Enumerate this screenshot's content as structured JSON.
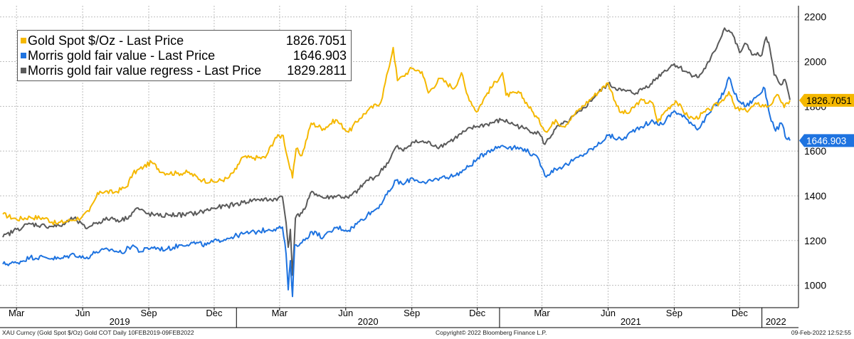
{
  "chart_data": {
    "type": "line",
    "ylim": [
      900,
      2250
    ],
    "y_ticks": [
      1000,
      1200,
      1400,
      1600,
      1800,
      2000,
      2200
    ],
    "x_range": [
      "2019-02-10",
      "2022-02-09"
    ],
    "month_ticks": [
      {
        "date": "2019-03-01",
        "label": "Mar"
      },
      {
        "date": "2019-06-01",
        "label": "Jun"
      },
      {
        "date": "2019-09-01",
        "label": "Sep"
      },
      {
        "date": "2019-12-01",
        "label": "Dec"
      },
      {
        "date": "2020-03-01",
        "label": "Mar"
      },
      {
        "date": "2020-06-01",
        "label": "Jun"
      },
      {
        "date": "2020-09-01",
        "label": "Sep"
      },
      {
        "date": "2020-12-01",
        "label": "Dec"
      },
      {
        "date": "2021-03-01",
        "label": "Mar"
      },
      {
        "date": "2021-06-01",
        "label": "Jun"
      },
      {
        "date": "2021-09-01",
        "label": "Sep"
      },
      {
        "date": "2021-12-01",
        "label": "Dec"
      }
    ],
    "year_labels": [
      {
        "label": "2019",
        "from": "2019-02-10",
        "to": "2020-01-01"
      },
      {
        "label": "2020",
        "from": "2020-01-01",
        "to": "2021-01-01"
      },
      {
        "label": "2021",
        "from": "2021-01-01",
        "to": "2022-01-01"
      },
      {
        "label": "2022",
        "from": "2022-01-01",
        "to": "2022-02-09"
      }
    ],
    "grid": true,
    "legend_position": "top-left",
    "series": [
      {
        "name": "Gold Spot $/Oz - Last Price",
        "last_value": "1826.7051",
        "color": "#f5b800",
        "points": [
          [
            "2019-02-10",
            1318
          ],
          [
            "2019-03-01",
            1295
          ],
          [
            "2019-03-20",
            1305
          ],
          [
            "2019-04-10",
            1300
          ],
          [
            "2019-04-25",
            1276
          ],
          [
            "2019-05-15",
            1290
          ],
          [
            "2019-05-31",
            1305
          ],
          [
            "2019-06-10",
            1330
          ],
          [
            "2019-06-20",
            1395
          ],
          [
            "2019-06-25",
            1420
          ],
          [
            "2019-07-15",
            1415
          ],
          [
            "2019-08-01",
            1440
          ],
          [
            "2019-08-10",
            1500
          ],
          [
            "2019-08-25",
            1530
          ],
          [
            "2019-09-05",
            1550
          ],
          [
            "2019-09-20",
            1505
          ],
          [
            "2019-10-10",
            1500
          ],
          [
            "2019-10-25",
            1505
          ],
          [
            "2019-11-15",
            1470
          ],
          [
            "2019-12-01",
            1462
          ],
          [
            "2019-12-20",
            1478
          ],
          [
            "2020-01-01",
            1520
          ],
          [
            "2020-01-08",
            1570
          ],
          [
            "2020-01-25",
            1570
          ],
          [
            "2020-02-10",
            1570
          ],
          [
            "2020-02-24",
            1660
          ],
          [
            "2020-03-06",
            1670
          ],
          [
            "2020-03-12",
            1570
          ],
          [
            "2020-03-19",
            1480
          ],
          [
            "2020-03-24",
            1610
          ],
          [
            "2020-04-01",
            1580
          ],
          [
            "2020-04-14",
            1725
          ],
          [
            "2020-05-01",
            1700
          ],
          [
            "2020-05-18",
            1740
          ],
          [
            "2020-06-05",
            1685
          ],
          [
            "2020-06-20",
            1745
          ],
          [
            "2020-07-01",
            1780
          ],
          [
            "2020-07-20",
            1820
          ],
          [
            "2020-07-30",
            1960
          ],
          [
            "2020-08-06",
            2063
          ],
          [
            "2020-08-12",
            1915
          ],
          [
            "2020-08-20",
            1935
          ],
          [
            "2020-09-01",
            1970
          ],
          [
            "2020-09-15",
            1955
          ],
          [
            "2020-09-24",
            1860
          ],
          [
            "2020-10-10",
            1925
          ],
          [
            "2020-10-30",
            1880
          ],
          [
            "2020-11-09",
            1950
          ],
          [
            "2020-11-16",
            1860
          ],
          [
            "2020-11-30",
            1775
          ],
          [
            "2020-12-15",
            1860
          ],
          [
            "2021-01-05",
            1950
          ],
          [
            "2021-01-10",
            1850
          ],
          [
            "2021-01-29",
            1860
          ],
          [
            "2021-02-15",
            1780
          ],
          [
            "2021-03-08",
            1685
          ],
          [
            "2021-03-20",
            1740
          ],
          [
            "2021-03-31",
            1710
          ],
          [
            "2021-04-20",
            1780
          ],
          [
            "2021-05-10",
            1840
          ],
          [
            "2021-06-01",
            1905
          ],
          [
            "2021-06-17",
            1775
          ],
          [
            "2021-06-30",
            1770
          ],
          [
            "2021-07-15",
            1825
          ],
          [
            "2021-08-02",
            1815
          ],
          [
            "2021-08-09",
            1730
          ],
          [
            "2021-08-20",
            1780
          ],
          [
            "2021-09-03",
            1825
          ],
          [
            "2021-09-20",
            1755
          ],
          [
            "2021-09-30",
            1745
          ],
          [
            "2021-10-20",
            1785
          ],
          [
            "2021-11-05",
            1820
          ],
          [
            "2021-11-16",
            1865
          ],
          [
            "2021-11-25",
            1790
          ],
          [
            "2021-12-10",
            1780
          ],
          [
            "2021-12-25",
            1810
          ],
          [
            "2022-01-10",
            1800
          ],
          [
            "2022-01-24",
            1850
          ],
          [
            "2022-02-01",
            1795
          ],
          [
            "2022-02-09",
            1827
          ]
        ]
      },
      {
        "name": "Morris gold fair value - Last Price",
        "last_value": "1646.903",
        "color": "#1e73e0",
        "points": [
          [
            "2019-02-10",
            1095
          ],
          [
            "2019-03-01",
            1100
          ],
          [
            "2019-03-20",
            1125
          ],
          [
            "2019-04-10",
            1125
          ],
          [
            "2019-05-01",
            1118
          ],
          [
            "2019-05-20",
            1140
          ],
          [
            "2019-06-05",
            1120
          ],
          [
            "2019-06-20",
            1150
          ],
          [
            "2019-07-10",
            1160
          ],
          [
            "2019-07-25",
            1145
          ],
          [
            "2019-08-10",
            1180
          ],
          [
            "2019-08-20",
            1150
          ],
          [
            "2019-09-05",
            1170
          ],
          [
            "2019-09-25",
            1160
          ],
          [
            "2019-10-15",
            1180
          ],
          [
            "2019-11-01",
            1190
          ],
          [
            "2019-11-20",
            1180
          ],
          [
            "2019-12-05",
            1200
          ],
          [
            "2019-12-25",
            1215
          ],
          [
            "2020-01-10",
            1230
          ],
          [
            "2020-01-30",
            1240
          ],
          [
            "2020-02-15",
            1250
          ],
          [
            "2020-02-28",
            1255
          ],
          [
            "2020-03-05",
            1260
          ],
          [
            "2020-03-10",
            1140
          ],
          [
            "2020-03-13",
            980
          ],
          [
            "2020-03-16",
            1110
          ],
          [
            "2020-03-19",
            950
          ],
          [
            "2020-03-22",
            1180
          ],
          [
            "2020-04-01",
            1190
          ],
          [
            "2020-04-15",
            1240
          ],
          [
            "2020-05-01",
            1215
          ],
          [
            "2020-05-20",
            1260
          ],
          [
            "2020-06-05",
            1245
          ],
          [
            "2020-06-20",
            1285
          ],
          [
            "2020-07-01",
            1315
          ],
          [
            "2020-07-15",
            1345
          ],
          [
            "2020-08-01",
            1420
          ],
          [
            "2020-08-10",
            1470
          ],
          [
            "2020-08-20",
            1450
          ],
          [
            "2020-09-01",
            1480
          ],
          [
            "2020-09-20",
            1455
          ],
          [
            "2020-10-10",
            1480
          ],
          [
            "2020-10-30",
            1490
          ],
          [
            "2020-11-15",
            1520
          ],
          [
            "2020-11-30",
            1560
          ],
          [
            "2020-12-15",
            1600
          ],
          [
            "2021-01-05",
            1625
          ],
          [
            "2021-01-20",
            1615
          ],
          [
            "2021-02-05",
            1610
          ],
          [
            "2021-02-25",
            1560
          ],
          [
            "2021-03-05",
            1490
          ],
          [
            "2021-03-20",
            1520
          ],
          [
            "2021-04-05",
            1540
          ],
          [
            "2021-04-25",
            1580
          ],
          [
            "2021-05-15",
            1620
          ],
          [
            "2021-06-01",
            1670
          ],
          [
            "2021-06-20",
            1650
          ],
          [
            "2021-07-10",
            1700
          ],
          [
            "2021-07-30",
            1730
          ],
          [
            "2021-08-15",
            1720
          ],
          [
            "2021-09-01",
            1780
          ],
          [
            "2021-09-20",
            1740
          ],
          [
            "2021-10-05",
            1700
          ],
          [
            "2021-10-20",
            1770
          ],
          [
            "2021-11-01",
            1820
          ],
          [
            "2021-11-10",
            1870
          ],
          [
            "2021-11-16",
            1930
          ],
          [
            "2021-11-28",
            1830
          ],
          [
            "2021-12-10",
            1800
          ],
          [
            "2021-12-25",
            1845
          ],
          [
            "2022-01-05",
            1880
          ],
          [
            "2022-01-12",
            1760
          ],
          [
            "2022-01-20",
            1690
          ],
          [
            "2022-01-28",
            1725
          ],
          [
            "2022-02-04",
            1655
          ],
          [
            "2022-02-09",
            1647
          ]
        ]
      },
      {
        "name": "Morris gold fair value regress - Last Price",
        "last_value": "1829.2811",
        "color": "#5a5a5a",
        "points": [
          [
            "2019-02-10",
            1215
          ],
          [
            "2019-03-01",
            1250
          ],
          [
            "2019-03-20",
            1275
          ],
          [
            "2019-04-10",
            1265
          ],
          [
            "2019-05-01",
            1265
          ],
          [
            "2019-05-20",
            1300
          ],
          [
            "2019-06-05",
            1255
          ],
          [
            "2019-06-20",
            1280
          ],
          [
            "2019-07-10",
            1300
          ],
          [
            "2019-07-25",
            1290
          ],
          [
            "2019-08-05",
            1310
          ],
          [
            "2019-08-15",
            1345
          ],
          [
            "2019-08-30",
            1320
          ],
          [
            "2019-09-15",
            1310
          ],
          [
            "2019-10-01",
            1315
          ],
          [
            "2019-10-20",
            1315
          ],
          [
            "2019-11-10",
            1325
          ],
          [
            "2019-12-01",
            1345
          ],
          [
            "2019-12-20",
            1355
          ],
          [
            "2020-01-10",
            1370
          ],
          [
            "2020-01-30",
            1385
          ],
          [
            "2020-02-15",
            1380
          ],
          [
            "2020-02-28",
            1390
          ],
          [
            "2020-03-05",
            1395
          ],
          [
            "2020-03-10",
            1280
          ],
          [
            "2020-03-13",
            1170
          ],
          [
            "2020-03-16",
            1250
          ],
          [
            "2020-03-19",
            1045
          ],
          [
            "2020-03-23",
            1300
          ],
          [
            "2020-04-05",
            1340
          ],
          [
            "2020-04-15",
            1420
          ],
          [
            "2020-05-01",
            1390
          ],
          [
            "2020-05-20",
            1400
          ],
          [
            "2020-06-05",
            1390
          ],
          [
            "2020-06-20",
            1430
          ],
          [
            "2020-07-01",
            1470
          ],
          [
            "2020-07-15",
            1490
          ],
          [
            "2020-08-01",
            1560
          ],
          [
            "2020-08-10",
            1620
          ],
          [
            "2020-08-20",
            1600
          ],
          [
            "2020-09-01",
            1640
          ],
          [
            "2020-09-20",
            1640
          ],
          [
            "2020-10-10",
            1620
          ],
          [
            "2020-10-30",
            1655
          ],
          [
            "2020-11-15",
            1690
          ],
          [
            "2020-11-30",
            1710
          ],
          [
            "2020-12-15",
            1720
          ],
          [
            "2021-01-05",
            1740
          ],
          [
            "2021-01-20",
            1720
          ],
          [
            "2021-02-05",
            1700
          ],
          [
            "2021-02-25",
            1680
          ],
          [
            "2021-03-05",
            1630
          ],
          [
            "2021-03-20",
            1700
          ],
          [
            "2021-04-05",
            1730
          ],
          [
            "2021-04-25",
            1780
          ],
          [
            "2021-05-15",
            1850
          ],
          [
            "2021-06-01",
            1900
          ],
          [
            "2021-06-20",
            1870
          ],
          [
            "2021-07-10",
            1860
          ],
          [
            "2021-07-30",
            1900
          ],
          [
            "2021-08-15",
            1950
          ],
          [
            "2021-09-01",
            1990
          ],
          [
            "2021-09-20",
            1950
          ],
          [
            "2021-10-05",
            1930
          ],
          [
            "2021-10-20",
            2000
          ],
          [
            "2021-11-01",
            2080
          ],
          [
            "2021-11-10",
            2150
          ],
          [
            "2021-11-20",
            2130
          ],
          [
            "2021-12-01",
            2040
          ],
          [
            "2021-12-10",
            2080
          ],
          [
            "2021-12-20",
            2030
          ],
          [
            "2022-01-01",
            2030
          ],
          [
            "2022-01-07",
            2110
          ],
          [
            "2022-01-12",
            2060
          ],
          [
            "2022-01-18",
            1940
          ],
          [
            "2022-01-26",
            1900
          ],
          [
            "2022-02-02",
            1920
          ],
          [
            "2022-02-09",
            1829
          ]
        ]
      }
    ]
  },
  "footer": {
    "left": "XAU Curncy (Gold Spot  $/Oz) Gold COT  Daily 10FEB2019-09FEB2022",
    "center": "Copyright© 2022 Bloomberg Finance L.P.",
    "right": "09-Feb-2022 12:52:55"
  }
}
